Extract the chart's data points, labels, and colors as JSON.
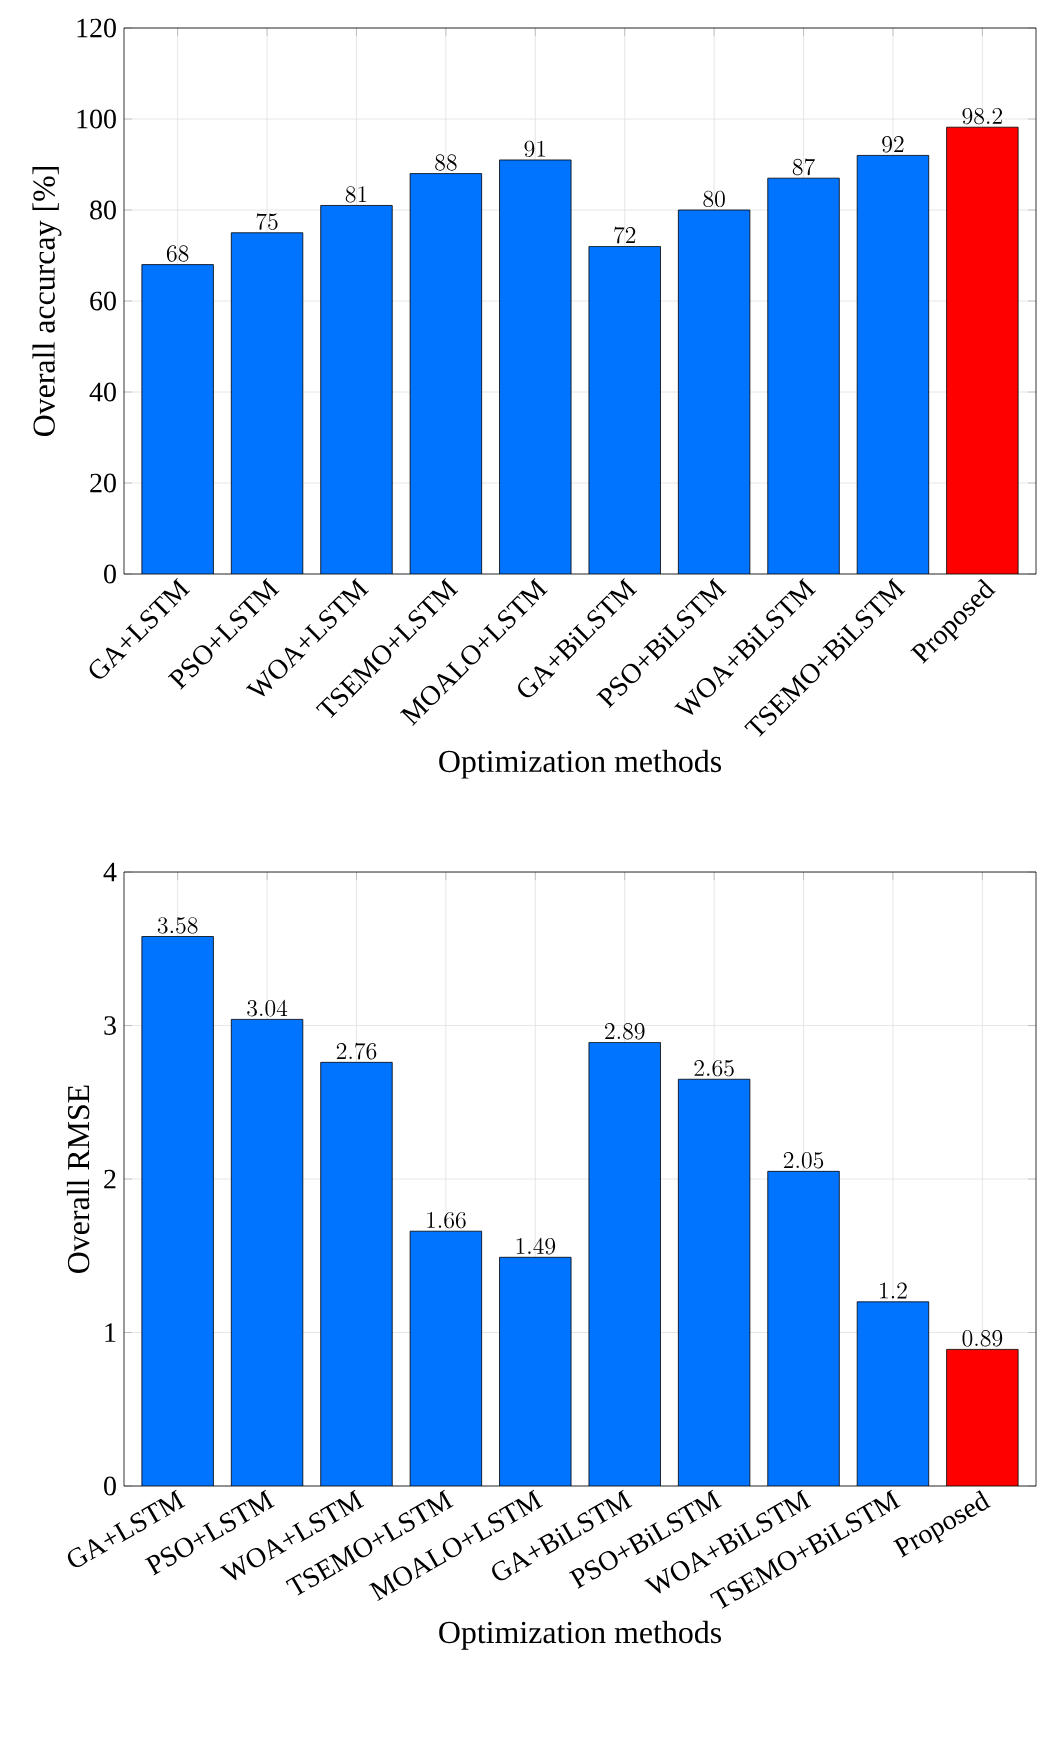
{
  "chart_data": [
    {
      "type": "bar",
      "categories": [
        "GA+LSTM",
        "PSO+LSTM",
        "WOA+LSTM",
        "TSEMO+LSTM",
        "MOALO+LSTM",
        "GA+BiLSTM",
        "PSO+BiLSTM",
        "WOA+BiLSTM",
        "TSEMO+BiLSTM",
        "Proposed"
      ],
      "values": [
        68,
        75,
        81,
        88,
        91,
        72,
        80,
        87,
        92,
        98.2
      ],
      "colors": [
        "#0073ff",
        "#0073ff",
        "#0073ff",
        "#0073ff",
        "#0073ff",
        "#0073ff",
        "#0073ff",
        "#0073ff",
        "#0073ff",
        "#ff0000"
      ],
      "xlabel": "Optimization methods",
      "ylabel": "Overall accurcay [%]",
      "ylim": [
        0,
        120
      ],
      "yticks": [
        0,
        20,
        40,
        60,
        80,
        100,
        120
      ],
      "grid": true,
      "data_labels": true
    },
    {
      "type": "bar",
      "categories": [
        "GA+LSTM",
        "PSO+LSTM",
        "WOA+LSTM",
        "TSEMO+LSTM",
        "MOALO+LSTM",
        "GA+BiLSTM",
        "PSO+BiLSTM",
        "WOA+BiLSTM",
        "TSEMO+BiLSTM",
        "Proposed"
      ],
      "values": [
        3.58,
        3.04,
        2.76,
        1.66,
        1.49,
        2.89,
        2.65,
        2.05,
        1.2,
        0.89
      ],
      "colors": [
        "#0073ff",
        "#0073ff",
        "#0073ff",
        "#0073ff",
        "#0073ff",
        "#0073ff",
        "#0073ff",
        "#0073ff",
        "#0073ff",
        "#ff0000"
      ],
      "xlabel": "Optimization methods",
      "ylabel": "Overall RMSE",
      "ylim": [
        0,
        4
      ],
      "yticks": [
        0,
        1,
        2,
        3,
        4
      ],
      "grid": true,
      "data_labels": true
    }
  ]
}
